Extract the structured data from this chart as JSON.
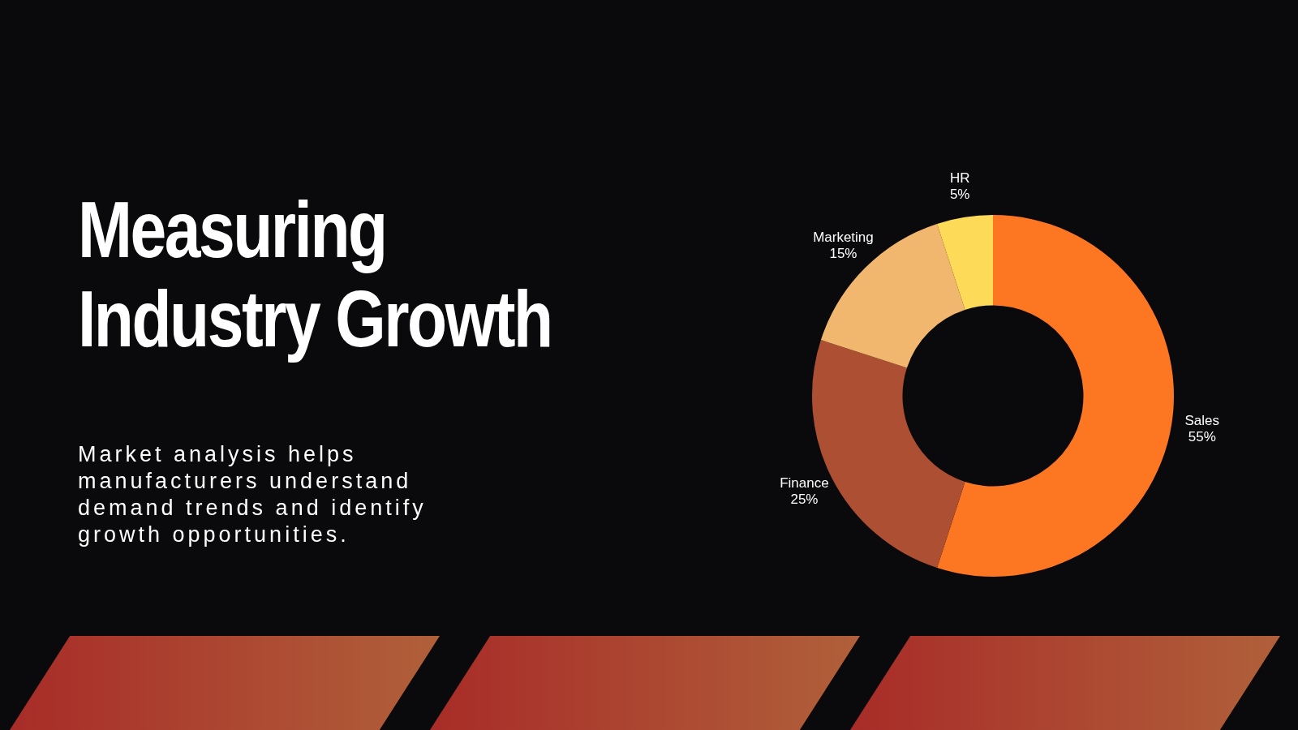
{
  "chart_data": {
    "type": "donut",
    "title": "Measuring Industry Growth",
    "subtitle": "Market analysis helps manufacturers understand demand trends and identify growth opportunities.",
    "categories": [
      "Sales",
      "Finance",
      "Marketing",
      "HR"
    ],
    "values": [
      55,
      25,
      15,
      5
    ],
    "colors": [
      "#fd7622",
      "#ad4f32",
      "#f2b76e",
      "#fddb58"
    ],
    "value_labels": [
      "55%",
      "25%",
      "15%",
      "5%"
    ],
    "legend": false
  }
}
